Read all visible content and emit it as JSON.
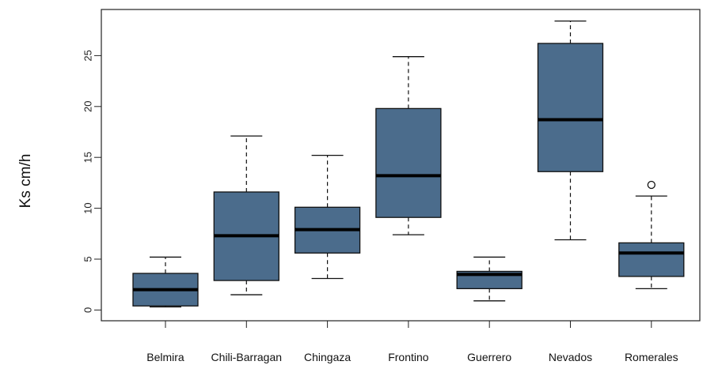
{
  "chart_data": {
    "type": "boxplot",
    "title": "",
    "xlabel": "",
    "ylabel": "Ks cm/h",
    "ylim": [
      -1,
      29.5
    ],
    "yticks": [
      0,
      5,
      10,
      15,
      20,
      25
    ],
    "grid": false,
    "box_color": "#4b6c8c",
    "median_color": "#000000",
    "categories": [
      "Belmira",
      "Chili-Barragan",
      "Chingaza",
      "Frontino",
      "Guerrero",
      "Nevados",
      "Romerales"
    ],
    "boxes": [
      {
        "category": "Belmira",
        "whisker_low": 0.3,
        "q1": 0.4,
        "median": 2.0,
        "q3": 3.6,
        "whisker_high": 5.2,
        "outliers": []
      },
      {
        "category": "Chili-Barragan",
        "whisker_low": 1.5,
        "q1": 2.9,
        "median": 7.3,
        "q3": 11.6,
        "whisker_high": 17.1,
        "outliers": []
      },
      {
        "category": "Chingaza",
        "whisker_low": 3.1,
        "q1": 5.6,
        "median": 7.9,
        "q3": 10.1,
        "whisker_high": 15.2,
        "outliers": []
      },
      {
        "category": "Frontino",
        "whisker_low": 7.4,
        "q1": 9.1,
        "median": 13.2,
        "q3": 19.8,
        "whisker_high": 24.9,
        "outliers": []
      },
      {
        "category": "Guerrero",
        "whisker_low": 0.9,
        "q1": 2.1,
        "median": 3.5,
        "q3": 3.8,
        "whisker_high": 5.2,
        "outliers": []
      },
      {
        "category": "Nevados",
        "whisker_low": 6.9,
        "q1": 13.6,
        "median": 18.7,
        "q3": 26.2,
        "whisker_high": 28.4,
        "outliers": []
      },
      {
        "category": "Romerales",
        "whisker_low": 2.1,
        "q1": 3.3,
        "median": 5.6,
        "q3": 6.6,
        "whisker_high": 11.2,
        "outliers": [
          12.3
        ]
      }
    ]
  }
}
